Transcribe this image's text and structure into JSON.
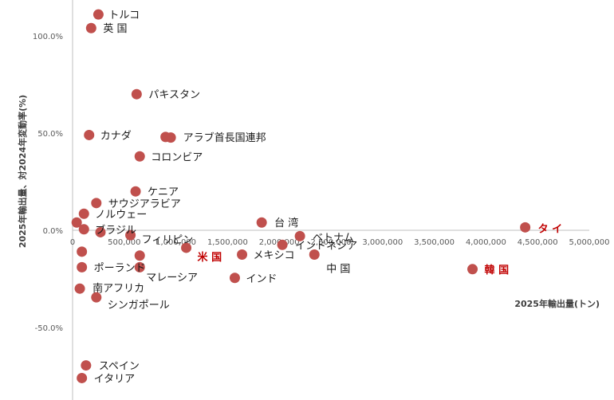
{
  "chart_data": {
    "type": "scatter",
    "title": "",
    "xlabel": "2025年輸出量(トン)",
    "ylabel": "2025年輸出量、対2024年変動率(%)",
    "xlim": [
      0,
      5000000
    ],
    "ylim": [
      -0.9,
      1.2
    ],
    "x_ticks": [
      0,
      500000,
      1000000,
      1500000,
      2000000,
      2500000,
      3000000,
      3500000,
      4000000,
      4500000,
      5000000
    ],
    "x_tick_labels": [
      "0",
      "500,000",
      "1,000,000",
      "1,500,000",
      "2,000,000",
      "2,500,000",
      "3,000,000",
      "3,500,000",
      "4,000,000",
      "4,500,000",
      "5,000,000"
    ],
    "y_ticks": [
      -0.5,
      0,
      0.5,
      1.0
    ],
    "y_tick_labels": [
      "-50.0%",
      "0.0%",
      "50.0%",
      "100.0%"
    ],
    "marker_color": "#c0504d",
    "highlight_label_color": "#c00000",
    "grid": false,
    "points": [
      {
        "label": "トルコ",
        "x": 250000,
        "y": 1.11
      },
      {
        "label": "英 国",
        "x": 180000,
        "y": 1.04
      },
      {
        "label": "パキスタン",
        "x": 620000,
        "y": 0.7
      },
      {
        "label": "カナダ",
        "x": 160000,
        "y": 0.49
      },
      {
        "label": "アラブ首長国連邦",
        "x": 900000,
        "y": 0.48
      },
      {
        "label": "",
        "x": 950000,
        "y": 0.477
      },
      {
        "label": "コロンビア",
        "x": 650000,
        "y": 0.38
      },
      {
        "label": "ケニア",
        "x": 610000,
        "y": 0.2
      },
      {
        "label": "サウジアラビア",
        "x": 230000,
        "y": 0.14
      },
      {
        "label": "ノルウェー",
        "x": 110000,
        "y": 0.085
      },
      {
        "label": "",
        "x": 40000,
        "y": 0.04
      },
      {
        "label": "ブラジル",
        "x": 110000,
        "y": 0.005
      },
      {
        "label": "",
        "x": 270000,
        "y": -0.01
      },
      {
        "label": "フィリピン",
        "x": 560000,
        "y": -0.025
      },
      {
        "label": "台 湾",
        "x": 1830000,
        "y": 0.04
      },
      {
        "label": "ベトナム",
        "x": 2200000,
        "y": -0.03
      },
      {
        "label": "インドネシア",
        "x": 2030000,
        "y": -0.075
      },
      {
        "label": "",
        "x": 90000,
        "y": -0.11
      },
      {
        "label": "米 国",
        "x": 1100000,
        "y": -0.09
      },
      {
        "label": "メキシコ",
        "x": 1640000,
        "y": -0.125
      },
      {
        "label": "",
        "x": 650000,
        "y": -0.13
      },
      {
        "label": "中 国",
        "x": 2340000,
        "y": -0.125
      },
      {
        "label": "タ イ",
        "x": 4380000,
        "y": 0.015
      },
      {
        "label": "ポーランド",
        "x": 90000,
        "y": -0.19
      },
      {
        "label": "マレーシア",
        "x": 650000,
        "y": -0.19
      },
      {
        "label": "韓 国",
        "x": 3870000,
        "y": -0.2
      },
      {
        "label": "インド",
        "x": 1570000,
        "y": -0.245
      },
      {
        "label": "南アフリカ",
        "x": 70000,
        "y": -0.3
      },
      {
        "label": "シンガポール",
        "x": 230000,
        "y": -0.345
      },
      {
        "label": "スペイン",
        "x": 130000,
        "y": -0.695
      },
      {
        "label": "イタリア",
        "x": 90000,
        "y": -0.76
      }
    ]
  }
}
